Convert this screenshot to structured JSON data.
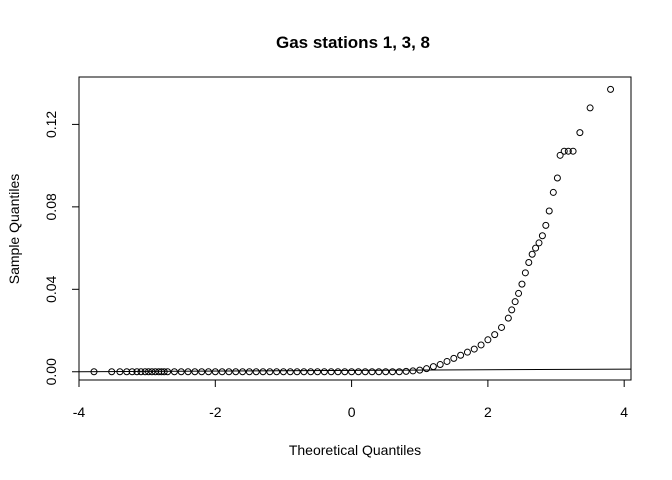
{
  "chart_data": {
    "type": "scatter",
    "title": "Gas stations 1, 3, 8",
    "xlabel": "Theoretical Quantiles",
    "ylabel": "Sample Quantiles",
    "xlim": [
      -4.0,
      4.1
    ],
    "ylim": [
      -0.004,
      0.143
    ],
    "x_ticks": [
      -4,
      -2,
      0,
      2,
      4
    ],
    "x_tick_labels": [
      "-4",
      "-2",
      "0",
      "2",
      "4"
    ],
    "y_ticks": [
      0.0,
      0.04,
      0.08,
      0.12
    ],
    "y_tick_labels": [
      "0.00",
      "0.04",
      "0.08",
      "0.12"
    ],
    "grid": false,
    "legend": "none",
    "marker": "open-circle",
    "reference_line": {
      "x": [
        -4.0,
        4.1
      ],
      "y": [
        0.0,
        0.0013
      ]
    },
    "series": [
      {
        "x": [
          -3.78,
          -3.52,
          -3.4,
          -3.3,
          -3.22,
          -3.15,
          -3.09,
          -3.03,
          -2.98,
          -2.93,
          -2.88,
          -2.83,
          -2.79,
          -2.75,
          -2.7,
          -2.6,
          -2.5,
          -2.4,
          -2.3,
          -2.2,
          -2.1,
          -2.0,
          -1.9,
          -1.8,
          -1.7,
          -1.6,
          -1.5,
          -1.4,
          -1.3,
          -1.2,
          -1.1,
          -1.0,
          -0.9,
          -0.8,
          -0.7,
          -0.6,
          -0.5,
          -0.4,
          -0.3,
          -0.2,
          -0.1,
          0.0,
          0.1,
          0.2,
          0.3,
          0.4,
          0.5,
          0.6,
          0.7,
          0.8,
          0.9,
          1.0,
          1.1,
          1.2,
          1.3,
          1.4,
          1.5,
          1.6,
          1.7,
          1.8,
          1.9,
          2.0,
          2.1,
          2.2,
          2.3,
          2.35,
          2.4,
          2.45,
          2.5,
          2.55,
          2.6,
          2.65,
          2.7,
          2.75,
          2.8,
          2.85,
          2.9,
          2.96,
          3.02,
          3.06,
          3.12,
          3.18,
          3.25,
          3.35,
          3.5,
          3.8
        ],
        "y": [
          0.0,
          0.0,
          0.0,
          0.0,
          0.0,
          0.0,
          0.0,
          0.0,
          0.0,
          0.0,
          0.0,
          0.0,
          0.0,
          0.0,
          0.0,
          0.0,
          0.0,
          0.0,
          0.0,
          0.0,
          0.0,
          0.0,
          0.0,
          0.0,
          0.0,
          0.0,
          0.0,
          0.0,
          0.0,
          0.0,
          0.0,
          0.0,
          0.0,
          0.0,
          0.0,
          0.0,
          0.0,
          0.0,
          0.0,
          0.0,
          0.0,
          0.0,
          0.0,
          0.0,
          0.0,
          0.0,
          0.0,
          0.0,
          0.0,
          0.0002,
          0.0004,
          0.0008,
          0.0015,
          0.0025,
          0.0035,
          0.005,
          0.0065,
          0.008,
          0.0095,
          0.011,
          0.013,
          0.0155,
          0.018,
          0.0215,
          0.026,
          0.03,
          0.034,
          0.038,
          0.0425,
          0.048,
          0.053,
          0.057,
          0.06,
          0.0625,
          0.066,
          0.071,
          0.078,
          0.087,
          0.094,
          0.105,
          0.107,
          0.107,
          0.107,
          0.116,
          0.128,
          0.137
        ]
      }
    ]
  }
}
